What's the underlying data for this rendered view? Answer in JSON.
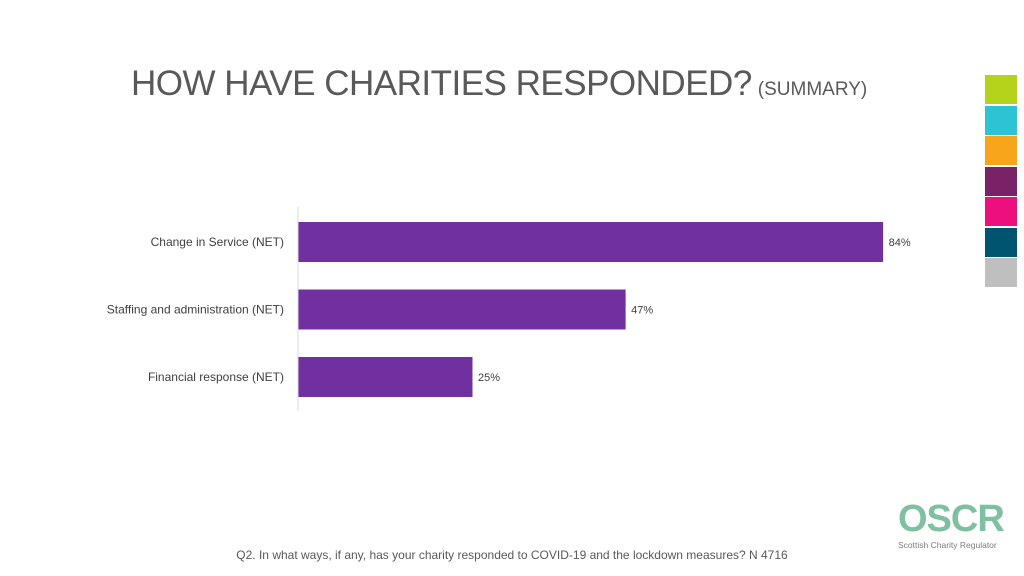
{
  "title": "HOW HAVE CHARITIES RESPONDED?",
  "subtitle": "(SUMMARY)",
  "swatch_colors": [
    "#b5d31a",
    "#2cc3d5",
    "#f8a51b",
    "#7a2268",
    "#ec0f7d",
    "#005470",
    "#bfbfbf"
  ],
  "chart_data": {
    "type": "bar",
    "orientation": "horizontal",
    "categories": [
      "Change in Service (NET)",
      "Staffing and administration (NET)",
      "Financial response (NET)"
    ],
    "values": [
      84,
      47,
      25
    ],
    "value_labels": [
      "84%",
      "47%",
      "25%"
    ],
    "unit": "%",
    "xlim": [
      0,
      100
    ],
    "bar_color": "#7030a0",
    "grid": false,
    "legend": "none"
  },
  "footnote": "Q2. In what ways, if any, has your charity responded to COVID-19 and the lockdown measures?  N 4716",
  "logo": {
    "name": "OSCR",
    "tagline": "Scottish Charity Regulator"
  }
}
